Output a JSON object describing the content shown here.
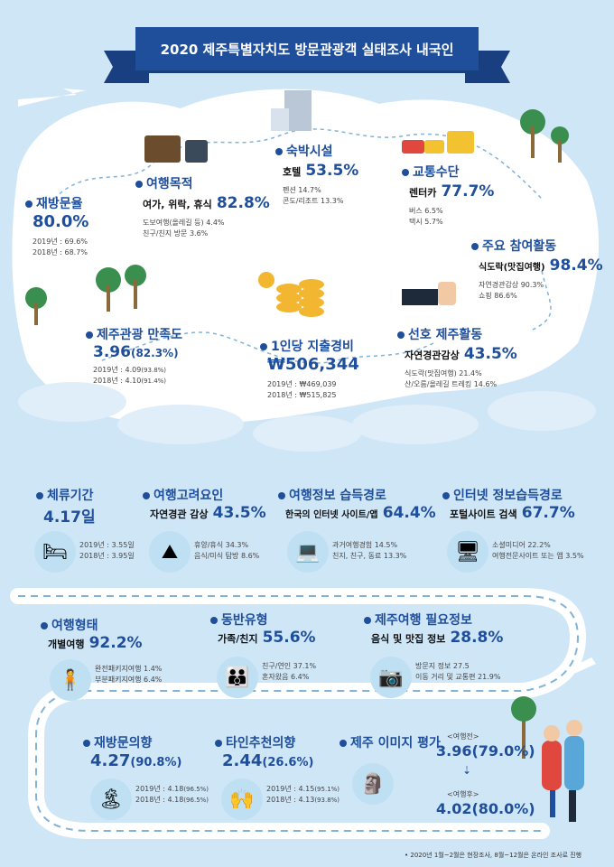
{
  "title": "2020 제주특별자치도 방문관광객 실태조사 내국인",
  "revisit": {
    "title": "재방문율",
    "value": "80.0%",
    "y2019": "2019년 : 69.6%",
    "y2018": "2018년 : 68.7%"
  },
  "purpose": {
    "title": "여행목적",
    "main_label": "여가, 위락, 휴식",
    "main_value": "82.8%",
    "items": [
      "도보여행(올레길 등) 4.4%",
      "친구/친지 방문  3.6%"
    ]
  },
  "lodging": {
    "title": "숙박시설",
    "main_label": "호텔",
    "main_value": "53.5%",
    "items": [
      "펜션 14.7%",
      "콘도/리조트 13.3%"
    ]
  },
  "transport": {
    "title": "교통수단",
    "main_label": "렌터카",
    "main_value": "77.7%",
    "items": [
      "버스 6.5%",
      "택시 5.7%"
    ]
  },
  "activity": {
    "title": "주요 참여활동",
    "main_label": "식도락(맛집여행)",
    "main_value": "98.4%",
    "items": [
      "자연경관감상 90.3%",
      "쇼핑 86.6%"
    ]
  },
  "satisfaction": {
    "title": "제주관광 만족도",
    "value": "3.96",
    "value_pct": "(82.3%)",
    "y2019": "2019년 : 4.09",
    "y2019_pct": "(93.8%)",
    "y2018": "2018년 : 4.10",
    "y2018_pct": "(91.4%)"
  },
  "spending": {
    "title": "1인당 지출경비",
    "value": "₩506,344",
    "y2019": "2019년 : ₩469,039",
    "y2018": "2018년 : ₩515,825"
  },
  "preferred": {
    "title": "선호 제주활동",
    "main_label": "자연경관감상",
    "main_value": "43.5%",
    "items": [
      "식도락(맛집여행) 21.4%",
      "산/오름/올레길 트레킹 14.6%"
    ]
  },
  "stay": {
    "title": "체류기간",
    "value": "4.17일",
    "items": [
      "2019년 : 3.55일",
      "2018년 : 3.95일"
    ]
  },
  "factor": {
    "title": "여행고려요인",
    "main_label": "자연경관 감상",
    "main_value": "43.5%",
    "items": [
      "휴양/휴식 34.3%",
      "음식/미식 탐방 8.6%"
    ]
  },
  "info_path": {
    "title": "여행정보 습득경로",
    "main_label": "한국의 인터넷 사이트/앱",
    "main_value": "64.4%",
    "items": [
      "과거여행경험 14.5%",
      "친지, 친구, 동료 13.3%"
    ]
  },
  "internet_path": {
    "title": "인터넷 정보습득경로",
    "main_label": "포털사이트 검색",
    "main_value": "67.7%",
    "items": [
      "소셜미디어 22.2%",
      "여행전문사이트 또는 앱 3.5%"
    ]
  },
  "travel_type": {
    "title": "여행형태",
    "main_label": "개별여행",
    "main_value": "92.2%",
    "items": [
      "완전패키지여행 1.4%",
      "부분패키지여행 6.4%"
    ]
  },
  "companion": {
    "title": "동반유형",
    "main_label": "가족/친지",
    "main_value": "55.6%",
    "items": [
      "친구/연인 37.1%",
      "혼자왔음 6.4%"
    ]
  },
  "needed_info": {
    "title": "제주여행 필요정보",
    "main_label": "음식 및 맛집 정보",
    "main_value": "28.8%",
    "items": [
      "방문지 정보  27.5",
      "이동 거리 및 교통편 21.9%"
    ]
  },
  "revisit_intent": {
    "title": "재방문의향",
    "value": "4.27",
    "value_pct": "(90.8%)",
    "items": [
      "2019년 : 4.18",
      "2018년 : 4.18"
    ],
    "items_pct": [
      "(96.5%)",
      "(96.5%)"
    ]
  },
  "recommend": {
    "title": "타인추천의향",
    "value": "2.44",
    "value_pct": "(26.6%)",
    "items": [
      "2019년 : 4.15",
      "2018년 : 4.13"
    ],
    "items_pct": [
      "(95.1%)",
      "(93.8%)"
    ]
  },
  "image_eval": {
    "title": "제주 이미지 평가",
    "before_label": "<여행전>",
    "before_value": "3.96(79.0%)",
    "after_label": "<여행후>",
    "after_value": "4.02(80.0%)"
  },
  "footnote": "2020년 1월~2월은 현장조사, 8월~12월은 온라인 조사로 진행",
  "colors": {
    "primary": "#1f4e9b",
    "sky": "#cfe6f7",
    "island": "#ffffff",
    "sea": "#7fb3d9"
  }
}
